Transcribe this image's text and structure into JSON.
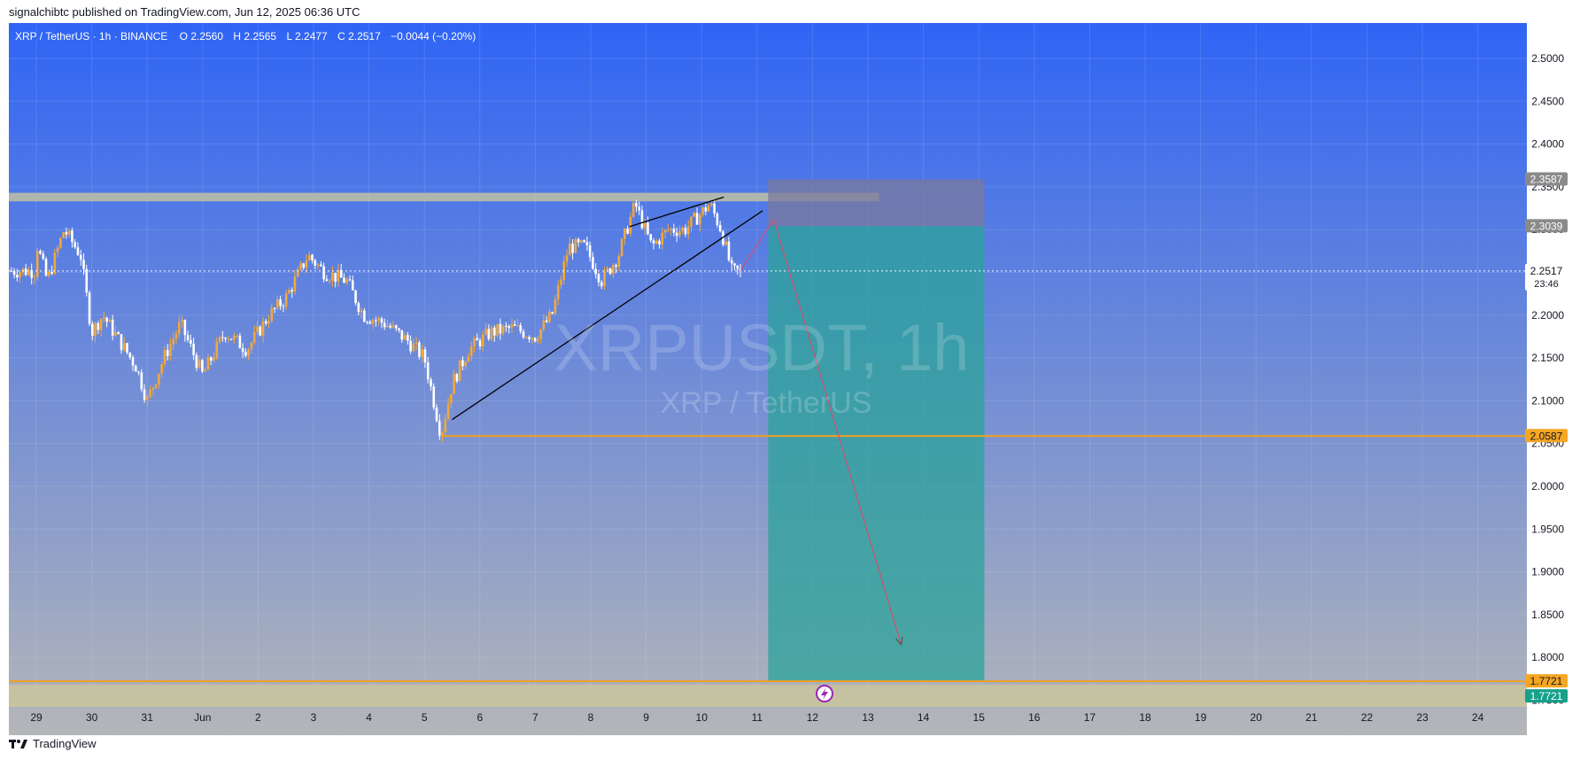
{
  "header": {
    "published": "signalchibtc published on TradingView.com, Jun 12, 2025 06:36 UTC"
  },
  "legend": {
    "symbol": "XRP / TetherUS · 1h · BINANCE",
    "open_label": "O",
    "open": "2.2560",
    "high_label": "H",
    "high": "2.2565",
    "low_label": "L",
    "low": "2.2477",
    "close_label": "C",
    "close": "2.2517",
    "change": "−0.0044 (−0.20%)"
  },
  "watermark": {
    "main": "XRPUSDT, 1h",
    "sub": "XRP / TetherUS"
  },
  "footer": {
    "brand": "TradingView"
  },
  "colors": {
    "bg_top": "#2f64f5",
    "bg_bottom": "#b4b6b8",
    "candle_up": "#f2a83b",
    "candle_down": "#ffffff",
    "resistance_zone": "#c8c4a0",
    "support_line": "#f0a020",
    "stop_zone": "#7a7a9c",
    "target_zone": "#2ba39a",
    "price_badge": "#ffffff",
    "level_badge": "#f5a623",
    "target_badge": "#16a08a",
    "gray_badge": "#8a8a8a"
  },
  "chart_data": {
    "type": "candlestick",
    "symbol": "XRP / TetherUS",
    "interval": "1h",
    "exchange": "BINANCE",
    "x_ticks": [
      "29",
      "30",
      "31",
      "Jun",
      "2",
      "3",
      "4",
      "5",
      "6",
      "7",
      "8",
      "9",
      "10",
      "11",
      "12",
      "13",
      "14",
      "15",
      "16",
      "17",
      "18",
      "19",
      "20",
      "21",
      "22",
      "23",
      "24"
    ],
    "y_ticks": [
      "2.5000",
      "2.4500",
      "2.4000",
      "2.3500",
      "2.3000",
      "2.2500",
      "2.2000",
      "2.1500",
      "2.1000",
      "2.0500",
      "2.0000",
      "1.9500",
      "1.9000",
      "1.8500",
      "1.8000",
      "1.7500"
    ],
    "ylim": [
      1.73,
      2.535
    ],
    "price_path": [
      {
        "day": 0.0,
        "price": 2.285
      },
      {
        "day": 0.2,
        "price": 2.24
      },
      {
        "day": 0.5,
        "price": 2.3
      },
      {
        "day": 0.8,
        "price": 2.27
      },
      {
        "day": 1.0,
        "price": 2.18
      },
      {
        "day": 1.2,
        "price": 2.2
      },
      {
        "day": 1.5,
        "price": 2.17
      },
      {
        "day": 1.8,
        "price": 2.14
      },
      {
        "day": 2.0,
        "price": 2.1
      },
      {
        "day": 2.3,
        "price": 2.15
      },
      {
        "day": 2.6,
        "price": 2.19
      },
      {
        "day": 3.0,
        "price": 2.13
      },
      {
        "day": 3.4,
        "price": 2.18
      },
      {
        "day": 3.8,
        "price": 2.16
      },
      {
        "day": 4.2,
        "price": 2.2
      },
      {
        "day": 4.5,
        "price": 2.22
      },
      {
        "day": 4.9,
        "price": 2.27
      },
      {
        "day": 5.2,
        "price": 2.25
      },
      {
        "day": 5.6,
        "price": 2.24
      },
      {
        "day": 5.9,
        "price": 2.2
      },
      {
        "day": 6.3,
        "price": 2.19
      },
      {
        "day": 6.7,
        "price": 2.17
      },
      {
        "day": 7.0,
        "price": 2.15
      },
      {
        "day": 7.3,
        "price": 2.06
      },
      {
        "day": 7.5,
        "price": 2.12
      },
      {
        "day": 7.8,
        "price": 2.16
      },
      {
        "day": 8.2,
        "price": 2.18
      },
      {
        "day": 8.6,
        "price": 2.185
      },
      {
        "day": 9.0,
        "price": 2.175
      },
      {
        "day": 9.3,
        "price": 2.2
      },
      {
        "day": 9.6,
        "price": 2.28
      },
      {
        "day": 9.9,
        "price": 2.28
      },
      {
        "day": 10.2,
        "price": 2.24
      },
      {
        "day": 10.5,
        "price": 2.27
      },
      {
        "day": 10.8,
        "price": 2.33
      },
      {
        "day": 11.1,
        "price": 2.28
      },
      {
        "day": 11.4,
        "price": 2.3
      },
      {
        "day": 11.7,
        "price": 2.3
      },
      {
        "day": 12.0,
        "price": 2.32
      },
      {
        "day": 12.15,
        "price": 2.33
      },
      {
        "day": 12.35,
        "price": 2.3
      },
      {
        "day": 12.55,
        "price": 2.25
      },
      {
        "day": 12.7,
        "price": 2.2517
      }
    ],
    "levels": [
      {
        "label": "2.3587",
        "price": 2.3587,
        "style": "gray"
      },
      {
        "label": "2.3039",
        "price": 2.3039,
        "style": "gray"
      },
      {
        "label": "2.2517",
        "price": 2.2517,
        "style": "current",
        "countdown": "23:46"
      },
      {
        "label": "2.0587",
        "price": 2.0587,
        "style": "orange"
      },
      {
        "label": "1.7721",
        "price": 1.7721,
        "style": "orange"
      },
      {
        "label": "1.7721",
        "price": 1.7721,
        "style": "green"
      }
    ],
    "drawings": {
      "resistance_zone": {
        "from_day": -0.5,
        "to_day": 15.2,
        "top": 2.343,
        "bottom": 2.333
      },
      "support_line": {
        "price": 2.0587,
        "from_day": 7.3
      },
      "target_line": {
        "price": 1.7721
      },
      "rising_wedge_upper": [
        {
          "day": 10.7,
          "price": 2.3035
        },
        {
          "day": 12.4,
          "price": 2.338
        }
      ],
      "rising_wedge_lower": [
        {
          "day": 7.5,
          "price": 2.078
        },
        {
          "day": 13.1,
          "price": 2.322
        }
      ],
      "short_position": {
        "from_day": 13.2,
        "to_day": 17.1,
        "stop": 2.3587,
        "entry": 2.3039,
        "target": 1.7721
      },
      "projection_arrow": [
        {
          "day": 12.7,
          "price": 2.2517
        },
        {
          "day": 13.3,
          "price": 2.312
        },
        {
          "day": 15.6,
          "price": 1.815
        }
      ]
    },
    "grid": true
  }
}
